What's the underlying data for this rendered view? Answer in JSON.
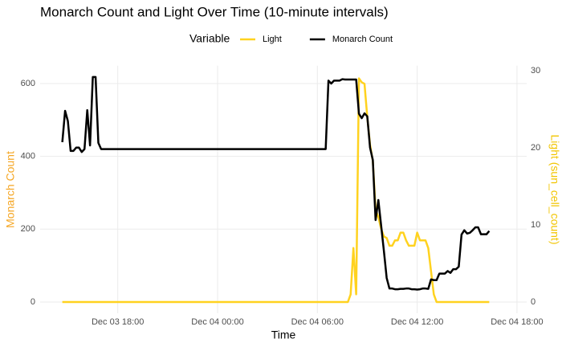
{
  "chart_data": {
    "type": "line",
    "title": "Monarch Count and Light Over Time (10-minute intervals)",
    "x_label": "Time",
    "y_label": "Monarch Count",
    "y2_label": "Light (sun_cell_count)",
    "y_label_color": "#F5A623",
    "y2_label_color": "#F2C500",
    "legend_title": "Variable",
    "legend_position": "top",
    "grid": true,
    "x": [
      "Dec 03 14:40",
      "Dec 03 14:50",
      "Dec 03 15:00",
      "Dec 03 15:10",
      "Dec 03 15:20",
      "Dec 03 15:30",
      "Dec 03 15:40",
      "Dec 03 15:50",
      "Dec 03 16:00",
      "Dec 03 16:10",
      "Dec 03 16:20",
      "Dec 03 16:30",
      "Dec 03 16:40",
      "Dec 03 16:50",
      "Dec 03 17:00",
      "Dec 04 06:30",
      "Dec 04 06:40",
      "Dec 04 06:50",
      "Dec 04 07:00",
      "Dec 04 07:10",
      "Dec 04 07:20",
      "Dec 04 07:30",
      "Dec 04 07:40",
      "Dec 04 07:50",
      "Dec 04 08:00",
      "Dec 04 08:10",
      "Dec 04 08:20",
      "Dec 04 08:30",
      "Dec 04 08:40",
      "Dec 04 08:50",
      "Dec 04 09:00",
      "Dec 04 09:10",
      "Dec 04 09:20",
      "Dec 04 09:30",
      "Dec 04 09:40",
      "Dec 04 09:50",
      "Dec 04 10:00",
      "Dec 04 10:10",
      "Dec 04 10:20",
      "Dec 04 10:30",
      "Dec 04 10:40",
      "Dec 04 10:50",
      "Dec 04 11:00",
      "Dec 04 11:10",
      "Dec 04 11:20",
      "Dec 04 11:30",
      "Dec 04 11:40",
      "Dec 04 11:50",
      "Dec 04 12:00",
      "Dec 04 12:10",
      "Dec 04 12:20",
      "Dec 04 12:30",
      "Dec 04 12:40",
      "Dec 04 12:50",
      "Dec 04 13:00",
      "Dec 04 13:10",
      "Dec 04 13:20",
      "Dec 04 13:30",
      "Dec 04 13:40",
      "Dec 04 13:50",
      "Dec 04 14:00",
      "Dec 04 14:10",
      "Dec 04 14:20",
      "Dec 04 14:30",
      "Dec 04 14:40",
      "Dec 04 14:50",
      "Dec 04 15:00",
      "Dec 04 15:10",
      "Dec 04 15:20",
      "Dec 04 15:30",
      "Dec 04 15:40",
      "Dec 04 15:50",
      "Dec 04 16:00",
      "Dec 04 16:10",
      "Dec 04 16:20"
    ],
    "series": [
      {
        "name": "Light",
        "color": "#FFD21F",
        "axis": "y2",
        "values": [
          0,
          0,
          0,
          0,
          0,
          0,
          0,
          0,
          0,
          0,
          0,
          0,
          0,
          0,
          0,
          0,
          0,
          0,
          0,
          0,
          0,
          0,
          0,
          0,
          1,
          7,
          1,
          29,
          28.5,
          28.3,
          24,
          20.4,
          18.3,
          12,
          11,
          9.5,
          8.5,
          8.3,
          7.3,
          7.3,
          8,
          8,
          9,
          9,
          8,
          7.3,
          7.3,
          7.3,
          9,
          8,
          8,
          8,
          7,
          4,
          1,
          0,
          0,
          0,
          0,
          0,
          0,
          0,
          0,
          0,
          0,
          0,
          0,
          0,
          0,
          0,
          0,
          0,
          0,
          0,
          0
        ]
      },
      {
        "name": "Monarch Count",
        "color": "#000000",
        "values": [
          439,
          525,
          497,
          415,
          415,
          424,
          424,
          412,
          420,
          527,
          430,
          618,
          618,
          437,
          420,
          420,
          608,
          600,
          608,
          608,
          608,
          612,
          611,
          611,
          611,
          611,
          611,
          517,
          505,
          518,
          510,
          424,
          390,
          225,
          280,
          210,
          140,
          66,
          37,
          37,
          35,
          35,
          36,
          36,
          37,
          37,
          35,
          35,
          34,
          35,
          37,
          37,
          36,
          62,
          60,
          60,
          78,
          78,
          78,
          85,
          80,
          90,
          90,
          97,
          185,
          197,
          188,
          190,
          197,
          205,
          205,
          186,
          186,
          186,
          195
        ]
      }
    ],
    "xlim": [
      "Dec 03 13:20",
      "Dec 04 18:35"
    ],
    "xticks": [
      "Dec 03 18:00",
      "Dec 04 00:00",
      "Dec 04 06:00",
      "Dec 04 12:00",
      "Dec 04 18:00"
    ],
    "ylim": [
      -31,
      649
    ],
    "yticks": [
      0,
      200,
      400,
      600
    ],
    "y2lim": [
      -1.46,
      30.65
    ],
    "y2ticks": [
      0,
      10,
      20,
      30
    ]
  }
}
